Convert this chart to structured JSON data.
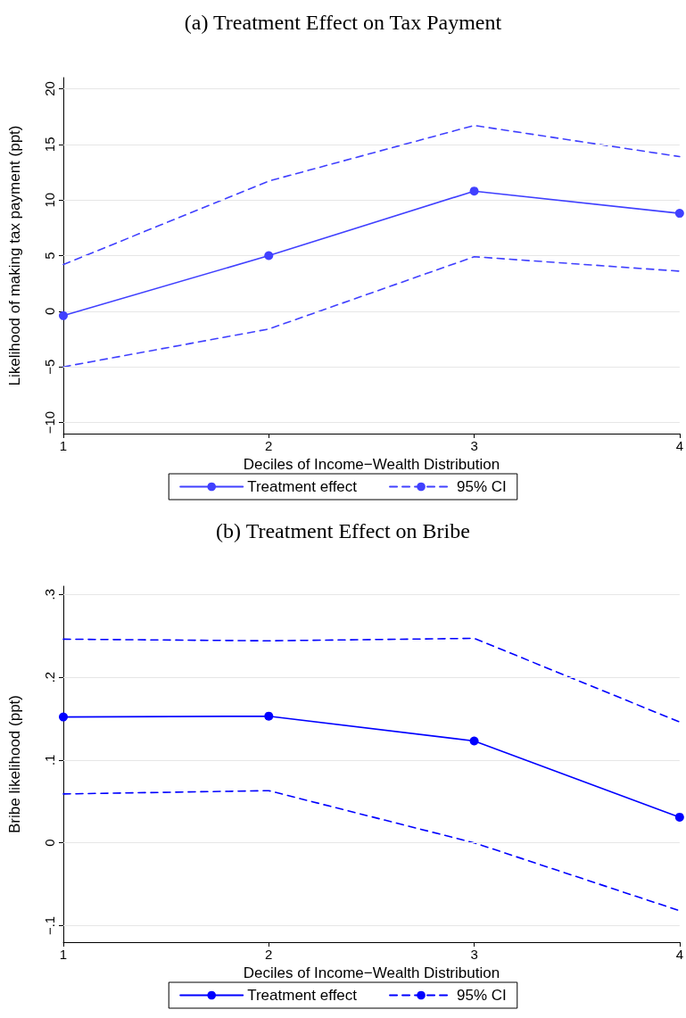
{
  "chart_data": [
    {
      "type": "line",
      "title": "(a) Treatment Effect on Tax Payment",
      "xlabel": "Deciles of Income−Wealth Distribution",
      "ylabel": "Likelihood of making tax payment (ppt)",
      "x": [
        1,
        2,
        3,
        4
      ],
      "xlim": [
        1,
        4
      ],
      "xticks": [
        1,
        2,
        3,
        4
      ],
      "ylim": [
        -11,
        21
      ],
      "yticks": [
        {
          "value": -10,
          "label": "−10"
        },
        {
          "value": -5,
          "label": "−5"
        },
        0,
        5,
        10,
        15,
        20
      ],
      "grid": "y",
      "legend": "bottom",
      "series": [
        {
          "name": "Treatment effect",
          "color": "#4040ff",
          "marker": "circle",
          "line_style": "solid",
          "values": [
            -0.4,
            5.0,
            10.8,
            8.8
          ]
        },
        {
          "name": "95% CI",
          "color": "#4040ff",
          "marker": "none",
          "line_style": "dashed",
          "values": [
            4.2,
            11.7,
            16.7,
            13.9
          ]
        },
        {
          "color": "#4040ff",
          "marker": "none",
          "line_style": "dashed",
          "values": [
            -5.0,
            -1.6,
            4.9,
            3.6
          ]
        }
      ]
    },
    {
      "type": "line",
      "title": "(b) Treatment Effect on Bribe",
      "xlabel": "Deciles of Income−Wealth Distribution",
      "ylabel": "Bribe likelihood (ppt)",
      "x": [
        1,
        2,
        3,
        4
      ],
      "xlim": [
        1,
        4
      ],
      "xticks": [
        1,
        2,
        3,
        4
      ],
      "ylim": [
        -0.12,
        0.31
      ],
      "yticks": [
        {
          "value": -0.1,
          "label": "−.1"
        },
        0,
        {
          "value": 0.1,
          "label": ".1"
        },
        {
          "value": 0.2,
          "label": ".2"
        },
        {
          "value": 0.3,
          "label": ".3"
        }
      ],
      "grid": "y",
      "legend": "bottom",
      "series": [
        {
          "name": "Treatment effect",
          "color": "#0000ff",
          "marker": "circle",
          "line_style": "solid",
          "values": [
            0.152,
            0.153,
            0.123,
            0.031
          ]
        },
        {
          "name": "95% CI",
          "color": "#0000ff",
          "marker": "none",
          "line_style": "dashed",
          "values": [
            0.246,
            0.244,
            0.247,
            0.146
          ]
        },
        {
          "color": "#0000ff",
          "marker": "none",
          "line_style": "dashed",
          "values": [
            0.059,
            0.063,
            0.0,
            -0.082
          ]
        }
      ]
    }
  ]
}
